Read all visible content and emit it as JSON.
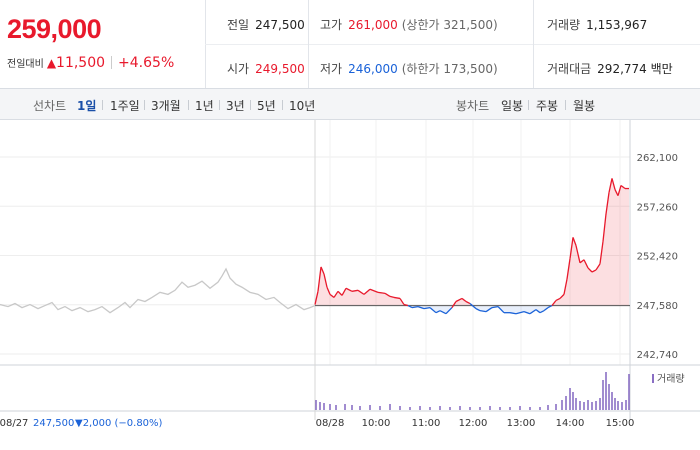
{
  "quote": {
    "price": "259,000",
    "change_label": "전일대비",
    "change_arrow": "▲",
    "change_amount": "11,500",
    "change_pct": "+4.65%"
  },
  "stats": {
    "prev_close_label": "전일",
    "prev_close": "247,500",
    "high_label": "고가",
    "high": "261,000",
    "upper_limit": "(상한가 321,500)",
    "volume_label": "거래량",
    "volume": "1,153,967",
    "open_label": "시가",
    "open": "249,500",
    "low_label": "저가",
    "low": "246,000",
    "lower_limit": "(하한가 173,500)",
    "value_label": "거래대금",
    "value": "292,774 백만"
  },
  "tabs": {
    "line_label": "선차트",
    "line_tabs": [
      "1일",
      "1주일",
      "3개월",
      "1년",
      "3년",
      "5년",
      "10년"
    ],
    "active": "1일",
    "candle_label": "봉차트",
    "candle_tabs": [
      "일봉",
      "주봉",
      "월봉"
    ]
  },
  "colors": {
    "up": "#e8192c",
    "down": "#1a62d8",
    "prev_day": "#c8c8c8",
    "volume": "#8a6fc4"
  },
  "chart_data": {
    "type": "line",
    "y_ticks": [
      "262,100",
      "257,260",
      "252,420",
      "247,580",
      "242,740"
    ],
    "y_tick_values": [
      262100,
      257260,
      252420,
      247580,
      242740
    ],
    "ylim": [
      242740,
      262100
    ],
    "baseline": 247500,
    "grid": true,
    "x_ticks": [
      "08/28",
      "10:00",
      "11:00",
      "12:00",
      "13:00",
      "14:00",
      "15:00"
    ],
    "prev_day_label": "08/27",
    "prev_day_summary": "247,500",
    "prev_day_arrow": "▼",
    "prev_day_change": "2,000",
    "prev_day_pct": "(−0.80%)",
    "volume_legend": "거래량",
    "series": [
      {
        "values": [
          [
            0,
            247600
          ],
          [
            8,
            247400
          ],
          [
            15,
            247700
          ],
          [
            22,
            247300
          ],
          [
            30,
            247600
          ],
          [
            38,
            247200
          ],
          [
            45,
            247500
          ],
          [
            52,
            247800
          ],
          [
            58,
            247100
          ],
          [
            65,
            247400
          ],
          [
            72,
            247000
          ],
          [
            80,
            247300
          ],
          [
            88,
            246900
          ],
          [
            95,
            247100
          ],
          [
            102,
            247400
          ],
          [
            110,
            246800
          ],
          [
            118,
            247300
          ],
          [
            125,
            247800
          ],
          [
            130,
            247300
          ],
          [
            138,
            248100
          ],
          [
            145,
            247900
          ],
          [
            152,
            248300
          ],
          [
            160,
            248800
          ],
          [
            168,
            248600
          ],
          [
            175,
            249000
          ],
          [
            182,
            249800
          ],
          [
            188,
            249300
          ],
          [
            195,
            249500
          ],
          [
            202,
            249900
          ],
          [
            210,
            249200
          ],
          [
            218,
            249800
          ],
          [
            222,
            250400
          ],
          [
            226,
            251100
          ],
          [
            230,
            250200
          ],
          [
            236,
            249600
          ],
          [
            242,
            249300
          ],
          [
            250,
            248800
          ],
          [
            258,
            248600
          ],
          [
            266,
            248100
          ],
          [
            274,
            248300
          ],
          [
            280,
            247800
          ],
          [
            288,
            247200
          ],
          [
            296,
            247600
          ],
          [
            304,
            247100
          ],
          [
            310,
            247300
          ],
          [
            315,
            247500
          ]
        ]
      },
      {
        "name": "08/28",
        "values": [
          [
            315,
            247600
          ],
          [
            318,
            248900
          ],
          [
            321,
            251300
          ],
          [
            324,
            250600
          ],
          [
            327,
            249300
          ],
          [
            330,
            248600
          ],
          [
            334,
            248300
          ],
          [
            338,
            248900
          ],
          [
            342,
            248500
          ],
          [
            346,
            249200
          ],
          [
            352,
            248900
          ],
          [
            358,
            249000
          ],
          [
            364,
            248600
          ],
          [
            370,
            249100
          ],
          [
            378,
            248800
          ],
          [
            385,
            248700
          ],
          [
            390,
            248400
          ],
          [
            394,
            248300
          ],
          [
            400,
            248200
          ],
          [
            404,
            247600
          ],
          [
            408,
            247500
          ],
          [
            412,
            247300
          ],
          [
            418,
            247400
          ],
          [
            424,
            247200
          ],
          [
            430,
            247300
          ],
          [
            436,
            246800
          ],
          [
            440,
            247000
          ],
          [
            446,
            246700
          ],
          [
            452,
            247300
          ],
          [
            456,
            247900
          ],
          [
            462,
            248200
          ],
          [
            466,
            247900
          ],
          [
            470,
            247700
          ],
          [
            476,
            247200
          ],
          [
            480,
            247000
          ],
          [
            486,
            246900
          ],
          [
            492,
            247300
          ],
          [
            498,
            247400
          ],
          [
            504,
            246800
          ],
          [
            510,
            246800
          ],
          [
            516,
            246700
          ],
          [
            524,
            246900
          ],
          [
            530,
            246700
          ],
          [
            536,
            247100
          ],
          [
            540,
            246800
          ],
          [
            544,
            247000
          ],
          [
            548,
            247300
          ],
          [
            552,
            247500
          ],
          [
            556,
            248000
          ],
          [
            560,
            248200
          ],
          [
            564,
            248600
          ],
          [
            567,
            250100
          ],
          [
            570,
            252100
          ],
          [
            573,
            254200
          ],
          [
            576,
            253400
          ],
          [
            580,
            251700
          ],
          [
            584,
            252000
          ],
          [
            588,
            251200
          ],
          [
            592,
            250800
          ],
          [
            596,
            251000
          ],
          [
            600,
            251600
          ],
          [
            603,
            253800
          ],
          [
            606,
            256500
          ],
          [
            609,
            258600
          ],
          [
            612,
            260000
          ],
          [
            615,
            258900
          ],
          [
            618,
            258300
          ],
          [
            621,
            259300
          ],
          [
            625,
            259000
          ],
          [
            629,
            259000
          ]
        ]
      }
    ],
    "volume_bars": [
      [
        316,
        10
      ],
      [
        320,
        8
      ],
      [
        324,
        7
      ],
      [
        330,
        6
      ],
      [
        336,
        5
      ],
      [
        345,
        6
      ],
      [
        352,
        5
      ],
      [
        360,
        4
      ],
      [
        370,
        5
      ],
      [
        380,
        4
      ],
      [
        390,
        6
      ],
      [
        400,
        4
      ],
      [
        410,
        3
      ],
      [
        420,
        4
      ],
      [
        430,
        3
      ],
      [
        440,
        4
      ],
      [
        450,
        3
      ],
      [
        460,
        4
      ],
      [
        470,
        3
      ],
      [
        480,
        3
      ],
      [
        490,
        4
      ],
      [
        500,
        3
      ],
      [
        510,
        3
      ],
      [
        520,
        4
      ],
      [
        530,
        3
      ],
      [
        540,
        3
      ],
      [
        548,
        5
      ],
      [
        556,
        6
      ],
      [
        562,
        10
      ],
      [
        566,
        14
      ],
      [
        570,
        22
      ],
      [
        573,
        18
      ],
      [
        576,
        12
      ],
      [
        580,
        9
      ],
      [
        584,
        8
      ],
      [
        588,
        10
      ],
      [
        592,
        8
      ],
      [
        596,
        9
      ],
      [
        600,
        12
      ],
      [
        603,
        30
      ],
      [
        606,
        38
      ],
      [
        609,
        26
      ],
      [
        612,
        18
      ],
      [
        615,
        12
      ],
      [
        618,
        9
      ],
      [
        622,
        8
      ],
      [
        626,
        10
      ],
      [
        629,
        36
      ]
    ]
  }
}
